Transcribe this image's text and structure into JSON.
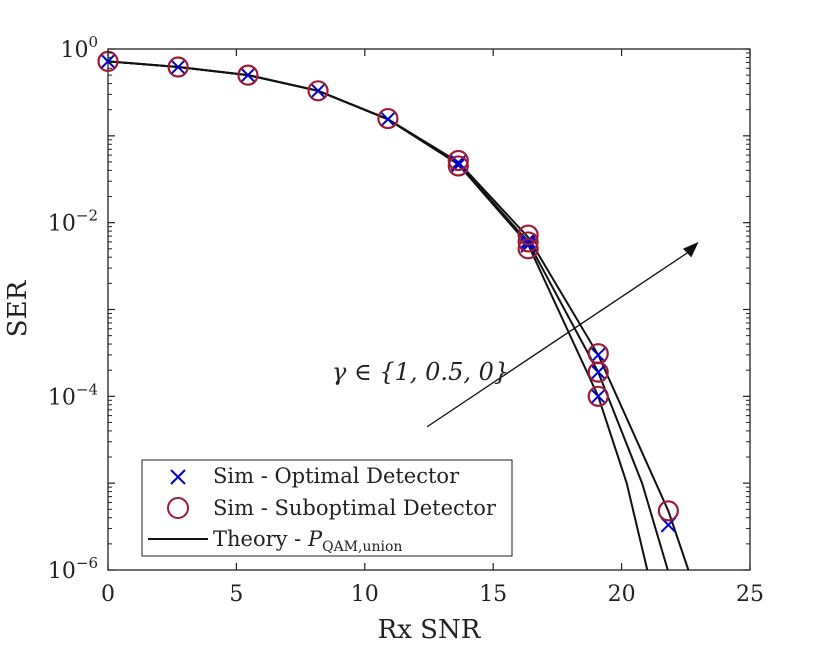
{
  "chart_data": {
    "type": "line",
    "xlabel": "Rx SNR",
    "ylabel": "SER",
    "y_scale": "log",
    "xlim": [
      0,
      25
    ],
    "ylim": [
      1e-06,
      1
    ],
    "x_ticks": [
      0,
      5,
      10,
      15,
      20,
      25
    ],
    "x_tick_labels": [
      "0",
      "5",
      "10",
      "15",
      "20",
      "25"
    ],
    "y_ticks": [
      {
        "value": 1,
        "base": "10",
        "exp": "0"
      },
      {
        "value": 0.01,
        "base": "10",
        "exp": "−2"
      },
      {
        "value": 0.0001,
        "base": "10",
        "exp": "−4"
      },
      {
        "value": 1e-06,
        "base": "10",
        "exp": "−6"
      }
    ],
    "grid": false,
    "legend_position": "bottom-left",
    "annotation": {
      "text": "γ ∈ {1, 0.5, 0}",
      "arrow_from": {
        "x": 16.4,
        "y": 8e-05
      },
      "arrow_to": {
        "x": 23.0,
        "y": 0.006
      }
    },
    "series": [
      {
        "name": "Sim - Optimal Detector",
        "kind": "marker-x",
        "color": "#0000cc",
        "points": [
          {
            "x": 0,
            "y": 0.72
          },
          {
            "x": 2.73,
            "y": 0.62
          },
          {
            "x": 5.45,
            "y": 0.5
          },
          {
            "x": 8.18,
            "y": 0.33
          },
          {
            "x": 10.9,
            "y": 0.155
          },
          {
            "x": 13.64,
            "y": 0.049
          },
          {
            "x": 13.64,
            "y": 0.046
          },
          {
            "x": 16.36,
            "y": 0.0062
          },
          {
            "x": 16.36,
            "y": 0.0058
          },
          {
            "x": 16.36,
            "y": 0.0055
          },
          {
            "x": 19.09,
            "y": 0.0003
          },
          {
            "x": 19.09,
            "y": 0.00019
          },
          {
            "x": 19.09,
            "y": 0.0001
          },
          {
            "x": 21.82,
            "y": 3.3e-06
          }
        ]
      },
      {
        "name": "Sim - Suboptimal Detector",
        "kind": "marker-circle",
        "color": "#9b1c3a",
        "points": [
          {
            "x": 0,
            "y": 0.72
          },
          {
            "x": 2.73,
            "y": 0.62
          },
          {
            "x": 5.45,
            "y": 0.5
          },
          {
            "x": 8.18,
            "y": 0.33
          },
          {
            "x": 10.9,
            "y": 0.158
          },
          {
            "x": 13.64,
            "y": 0.052
          },
          {
            "x": 13.64,
            "y": 0.045
          },
          {
            "x": 16.36,
            "y": 0.0072
          },
          {
            "x": 16.36,
            "y": 0.006
          },
          {
            "x": 16.36,
            "y": 0.005
          },
          {
            "x": 19.09,
            "y": 0.00031
          },
          {
            "x": 19.09,
            "y": 0.00019
          },
          {
            "x": 19.09,
            "y": 0.0001
          },
          {
            "x": 21.82,
            "y": 4.8e-06
          }
        ]
      },
      {
        "name": "Theory - P_QAM,union",
        "kind": "line",
        "color": "#111111",
        "curves": [
          {
            "gamma": "1",
            "x": [
              0,
              2.73,
              5.45,
              8.18,
              10.9,
              13.64,
              16.36,
              19.09,
              20.2,
              21.0
            ],
            "y": [
              0.72,
              0.62,
              0.5,
              0.33,
              0.155,
              0.047,
              0.0056,
              0.0001,
              1e-05,
              1e-06
            ]
          },
          {
            "gamma": "0.5",
            "x": [
              0,
              2.73,
              5.45,
              8.18,
              10.9,
              13.64,
              16.36,
              19.09,
              20.8,
              21.8
            ],
            "y": [
              0.72,
              0.62,
              0.5,
              0.33,
              0.155,
              0.048,
              0.006,
              0.00019,
              1e-05,
              1e-06
            ]
          },
          {
            "gamma": "0",
            "x": [
              0,
              2.73,
              5.45,
              8.18,
              10.9,
              13.64,
              16.36,
              19.09,
              21.82,
              22.6
            ],
            "y": [
              0.72,
              0.62,
              0.5,
              0.33,
              0.156,
              0.05,
              0.0068,
              0.0003,
              4.8e-06,
              1e-06
            ]
          }
        ]
      }
    ],
    "legend": [
      {
        "label": "Sim - Optimal Detector",
        "symbol": "x"
      },
      {
        "label": "Sim - Suboptimal Detector",
        "symbol": "circle"
      },
      {
        "label_prefix": "Theory - ",
        "label_math": "P",
        "label_sub": "QAM,union",
        "symbol": "line"
      }
    ]
  }
}
